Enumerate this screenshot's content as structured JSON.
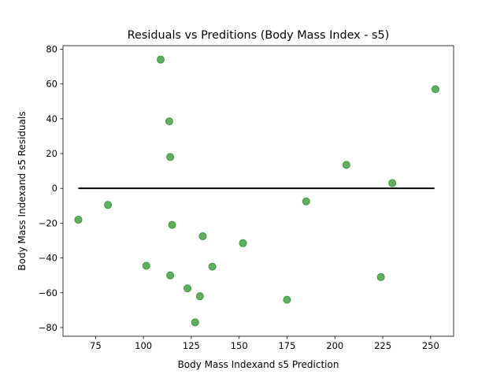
{
  "chart_data": {
    "type": "scatter",
    "title": "Residuals vs Preditions (Body Mass Index - s5)",
    "xlabel": "Body Mass Indexand s5 Prediction",
    "ylabel": "Body Mass Indexand s5 Residuals",
    "xlim": [
      58,
      262
    ],
    "ylim": [
      -85,
      82
    ],
    "xticks": [
      75,
      100,
      125,
      150,
      175,
      200,
      225,
      250
    ],
    "yticks": [
      -80,
      -60,
      -40,
      -20,
      0,
      20,
      40,
      60,
      80
    ],
    "grid": false,
    "marker_color": "#3a9a3a",
    "zero_line": {
      "y": 0,
      "x_start": 66,
      "x_end": 252,
      "color": "#000000"
    },
    "points": [
      {
        "x": 66,
        "y": -18
      },
      {
        "x": 81.5,
        "y": -9.5
      },
      {
        "x": 101.5,
        "y": -44.5
      },
      {
        "x": 109,
        "y": 74
      },
      {
        "x": 113.5,
        "y": 38.5
      },
      {
        "x": 114,
        "y": 18
      },
      {
        "x": 114,
        "y": -50
      },
      {
        "x": 115,
        "y": -21
      },
      {
        "x": 123,
        "y": -57.5
      },
      {
        "x": 127,
        "y": -77
      },
      {
        "x": 129.5,
        "y": -62
      },
      {
        "x": 131,
        "y": -27.5
      },
      {
        "x": 136,
        "y": -45
      },
      {
        "x": 152,
        "y": -31.5
      },
      {
        "x": 175,
        "y": -64
      },
      {
        "x": 185,
        "y": -7.5
      },
      {
        "x": 206,
        "y": 13.5
      },
      {
        "x": 224,
        "y": -51
      },
      {
        "x": 230,
        "y": 3
      },
      {
        "x": 252.5,
        "y": 57
      }
    ]
  }
}
